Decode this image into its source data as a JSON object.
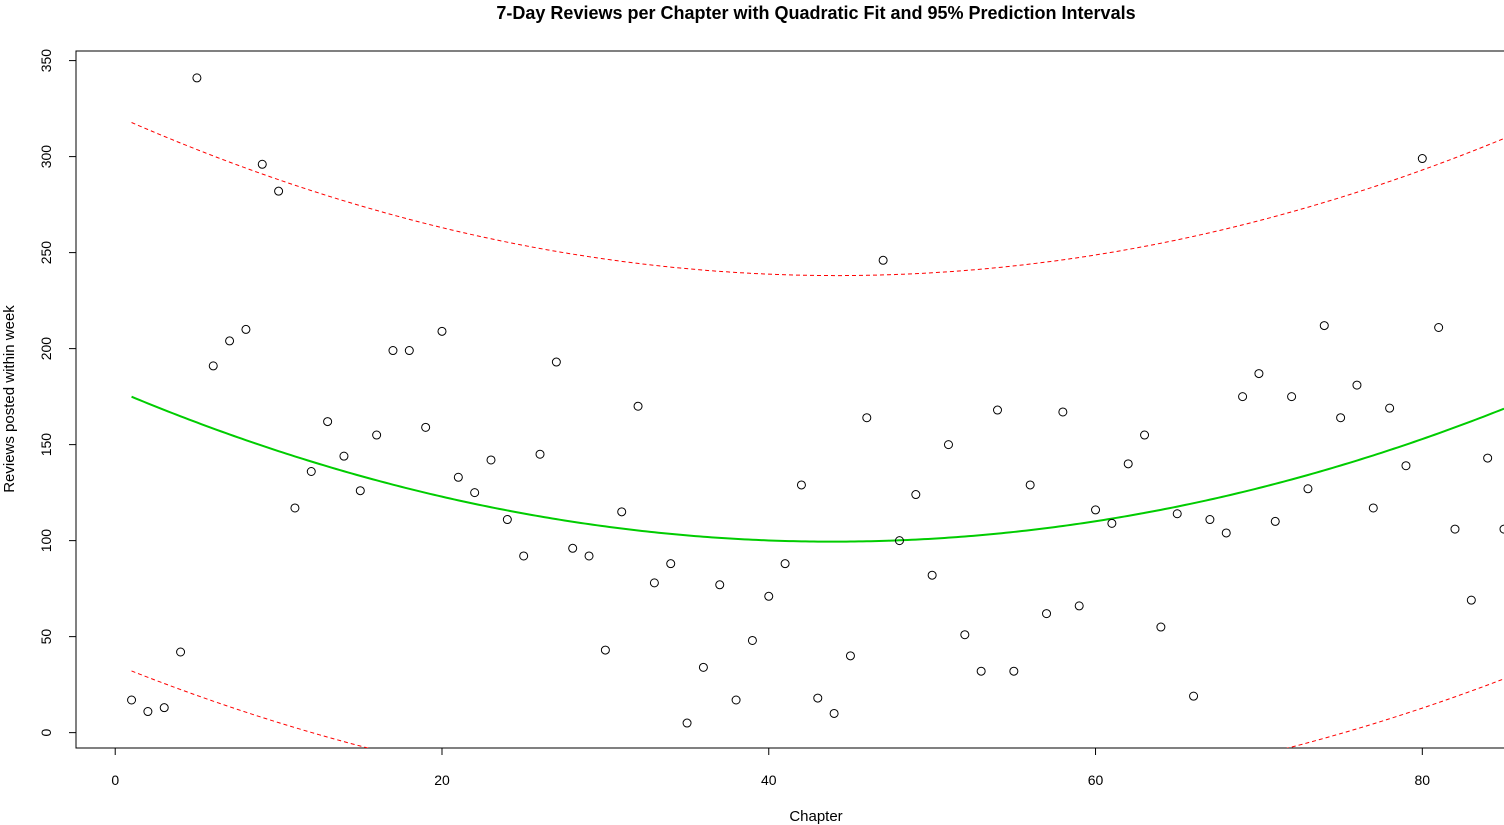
{
  "chart_data": {
    "type": "scatter",
    "title": "7-Day Reviews per Chapter with Quadratic Fit and 95% Prediction Intervals",
    "xlabel": "Chapter",
    "ylabel": "Reviews posted within week",
    "xlim": [
      -2.4,
      85
    ],
    "ylim": [
      -8,
      355
    ],
    "x_ticks": [
      0,
      20,
      40,
      60,
      80
    ],
    "y_ticks": [
      0,
      50,
      100,
      150,
      200,
      250,
      300,
      350
    ],
    "grid": false,
    "colors": {
      "points": "#000000",
      "fit": "#00cc00",
      "interval": "#ff0000"
    },
    "points": {
      "x": [
        1,
        2,
        3,
        4,
        5,
        6,
        7,
        8,
        9,
        10,
        11,
        12,
        13,
        14,
        15,
        16,
        17,
        18,
        19,
        20,
        21,
        22,
        23,
        24,
        25,
        26,
        27,
        28,
        29,
        30,
        31,
        32,
        33,
        34,
        35,
        36,
        37,
        38,
        39,
        40,
        41,
        42,
        43,
        44,
        45,
        46,
        47,
        48,
        49,
        50,
        51,
        52,
        53,
        54,
        55,
        56,
        57,
        58,
        59,
        60,
        61,
        62,
        63,
        64,
        65,
        66,
        67,
        68,
        69,
        70,
        71,
        72,
        73,
        74,
        75,
        76,
        77,
        78,
        79,
        80,
        81,
        82,
        83,
        84,
        85
      ],
      "y": [
        17,
        11,
        13,
        42,
        341,
        191,
        204,
        210,
        296,
        282,
        117,
        136,
        162,
        144,
        126,
        155,
        199,
        199,
        159,
        209,
        133,
        125,
        142,
        111,
        92,
        145,
        193,
        96,
        92,
        43,
        115,
        170,
        78,
        88,
        5,
        34,
        77,
        17,
        48,
        71,
        88,
        129,
        18,
        10,
        40,
        164,
        246,
        100,
        124,
        82,
        150,
        51,
        32,
        168,
        32,
        129,
        62,
        167,
        66,
        116,
        109,
        140,
        155,
        55,
        114,
        19,
        111,
        104,
        175,
        187,
        110,
        175,
        127,
        212,
        164,
        181,
        117,
        169,
        139,
        299,
        211,
        106,
        69,
        143,
        106
      ]
    },
    "series": [
      {
        "name": "Quadratic fit",
        "style": "solid",
        "color": "#00cc00",
        "coefficients": [
          178.5,
          -3.6,
          0.041
        ]
      },
      {
        "name": "Upper 95% PI",
        "style": "dashed",
        "color": "#ff0000",
        "coefficients": [
          321.5,
          -3.78,
          0.0428
        ]
      },
      {
        "name": "Lower 95% PI",
        "style": "dashed",
        "color": "#ff0000",
        "coefficients": [
          35.5,
          -3.42,
          0.0392
        ]
      }
    ]
  }
}
